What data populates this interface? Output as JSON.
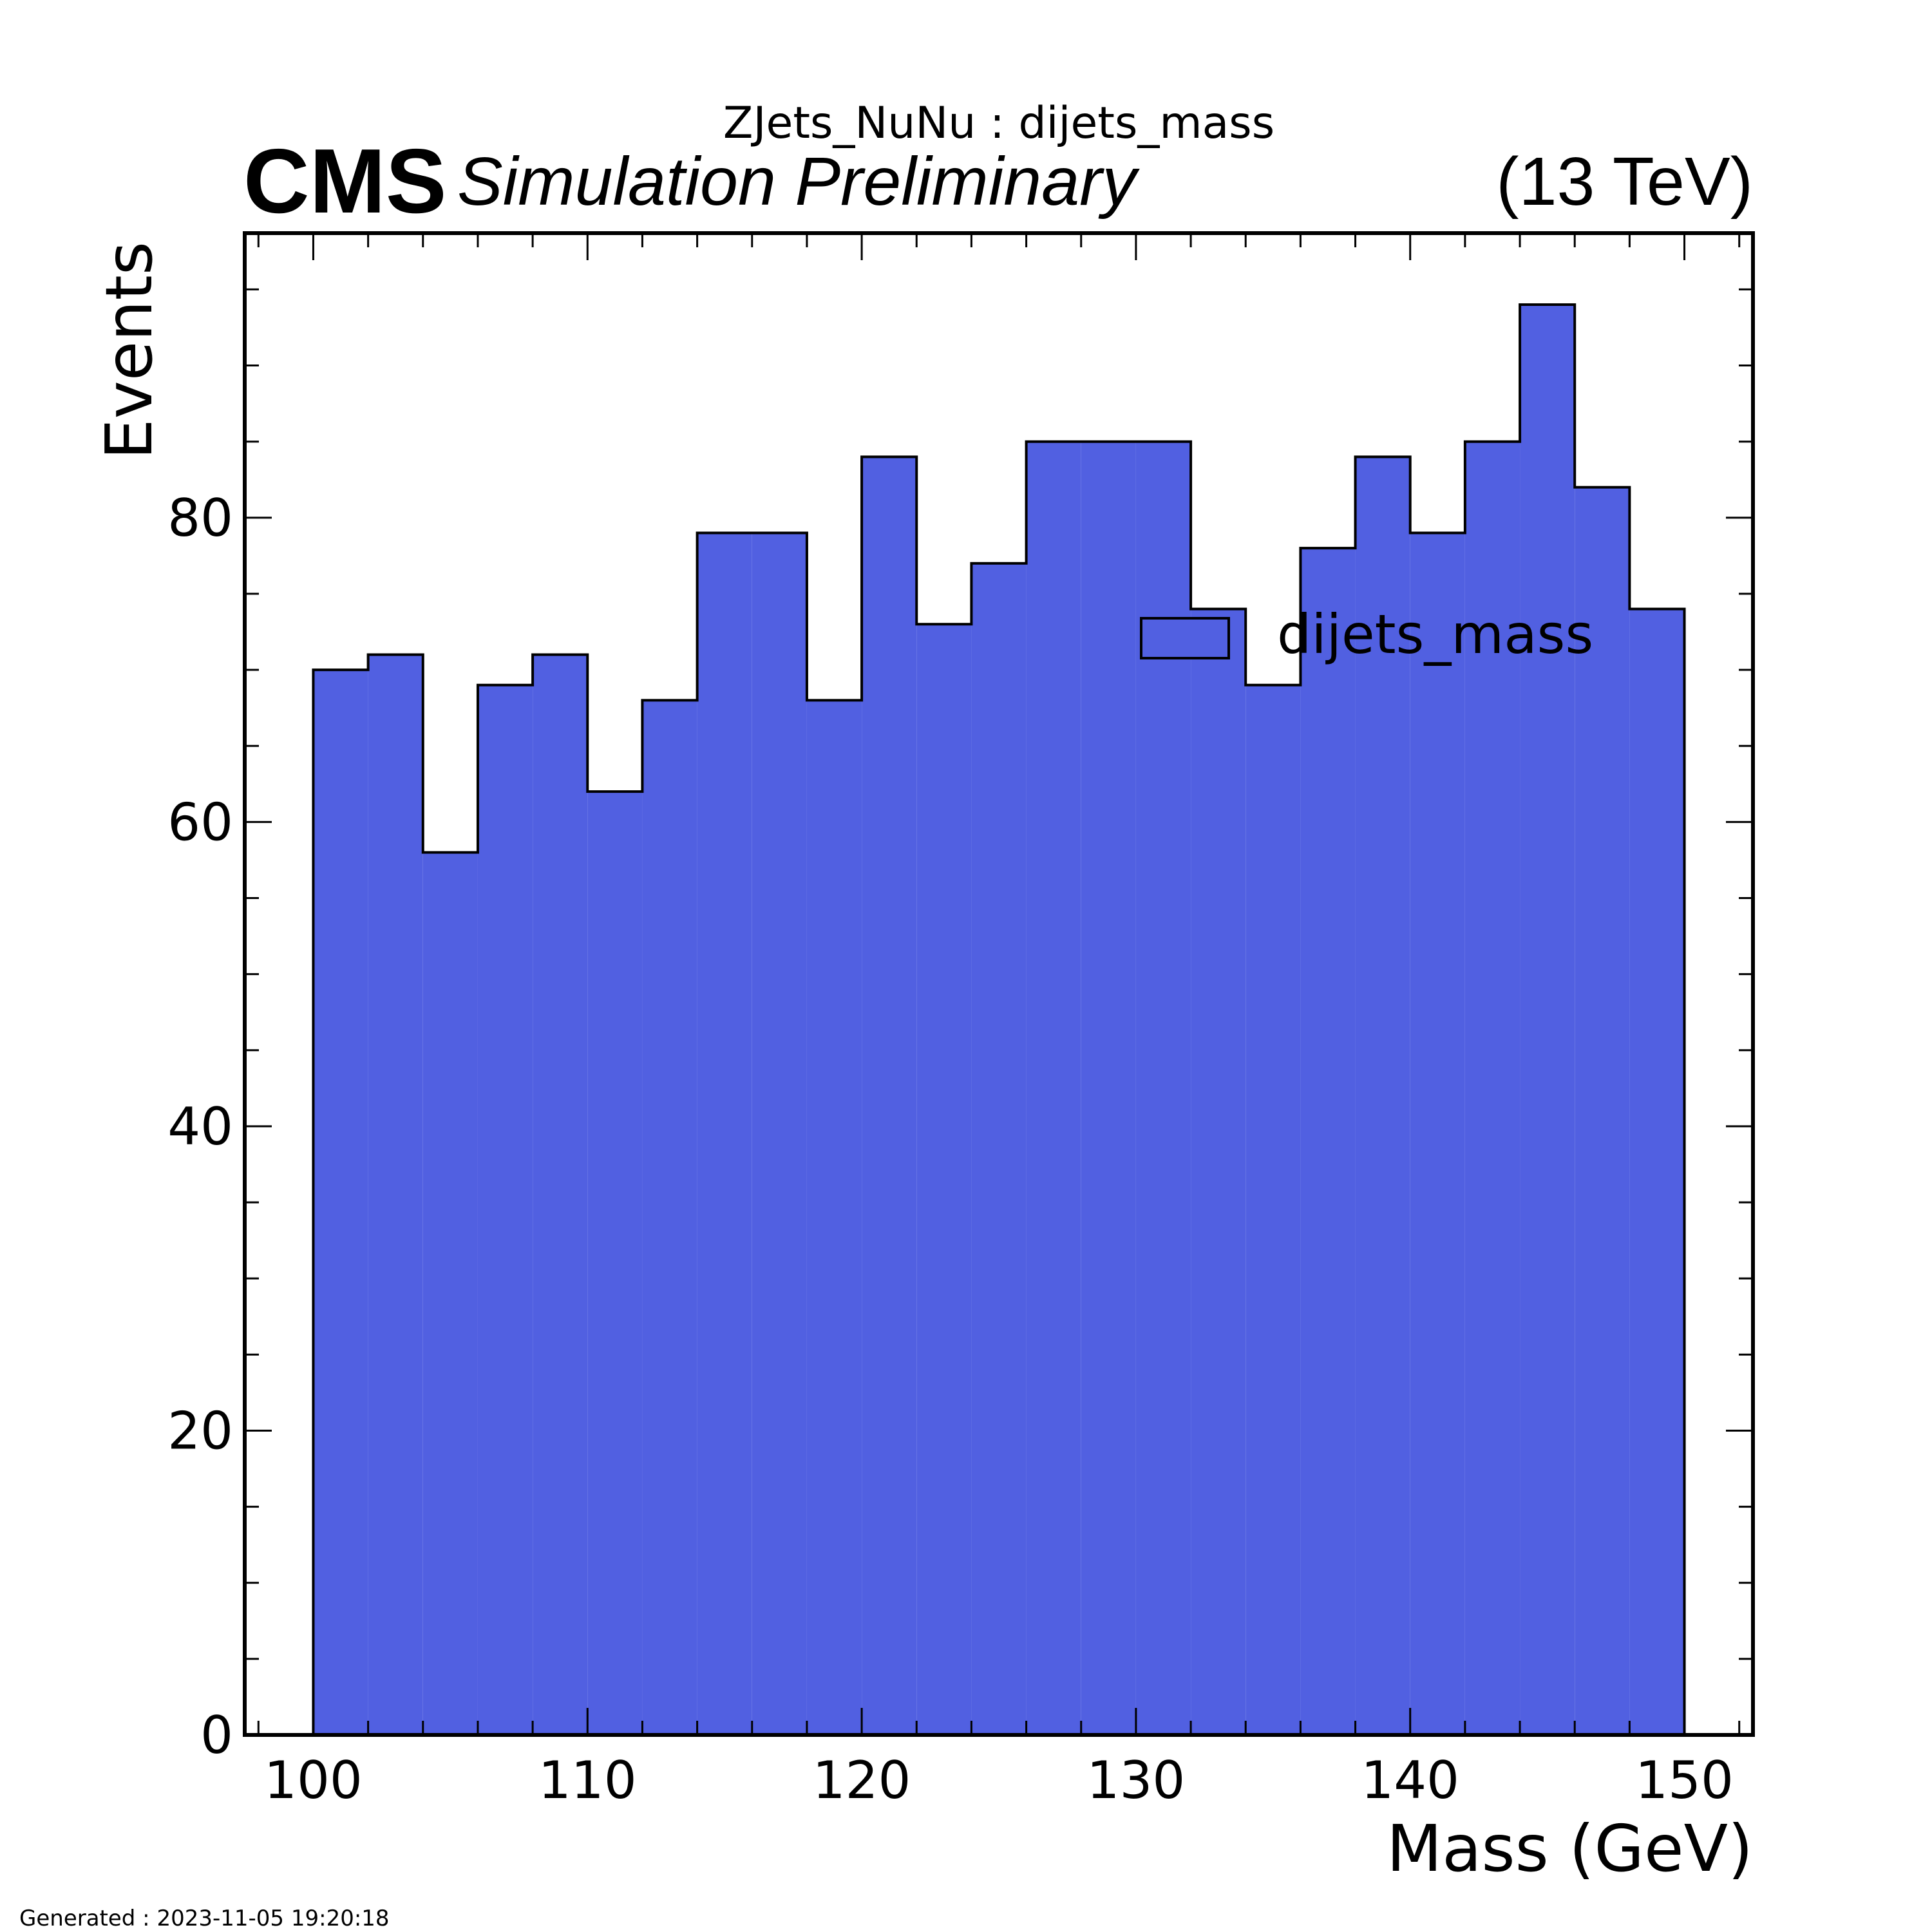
{
  "header": {
    "plot_title": "ZJets_NuNu : dijets_mass",
    "experiment": "CMS",
    "status": "Simulation Preliminary",
    "energy": "(13 TeV)"
  },
  "footer": {
    "generated": "Generated : 2023-11-05 19:20:18"
  },
  "chart_data": {
    "type": "bar",
    "histogram": true,
    "xlabel": "Mass (GeV)",
    "ylabel": "Events",
    "xlim": [
      97.5,
      152.5
    ],
    "ylim": [
      0,
      98.7
    ],
    "xticks": [
      100,
      110,
      120,
      130,
      140,
      150
    ],
    "yticks": [
      0,
      20,
      40,
      60,
      80
    ],
    "grid": false,
    "legend": {
      "position": "upper-right",
      "entries": [
        "dijets_mass"
      ]
    },
    "bin_edges": [
      100,
      102,
      104,
      106,
      108,
      110,
      112,
      114,
      116,
      118,
      120,
      122,
      124,
      126,
      128,
      130,
      132,
      134,
      136,
      138,
      140,
      142,
      144,
      146,
      148,
      150
    ],
    "series": [
      {
        "name": "dijets_mass",
        "color": "#5160e1",
        "values": [
          70,
          71,
          58,
          69,
          71,
          62,
          68,
          79,
          79,
          68,
          84,
          73,
          77,
          85,
          85,
          85,
          74,
          69,
          78,
          84,
          79,
          85,
          94,
          82,
          74
        ]
      }
    ]
  }
}
